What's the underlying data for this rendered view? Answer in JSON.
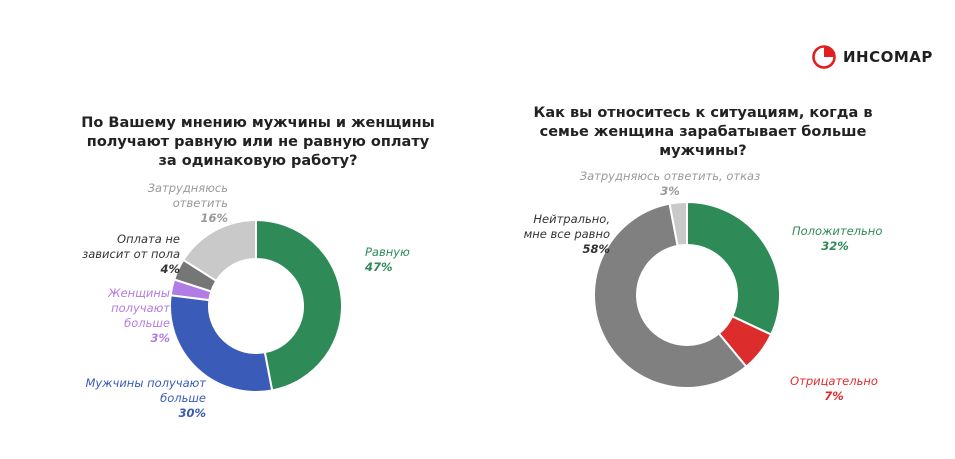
{
  "brand": {
    "name": "ИНСОМАР",
    "color": "#e02020"
  },
  "charts": [
    {
      "id": "left",
      "title": "По Вашему мнению мужчины и женщины получают равную или не равную оплату за одинаковую работу?"
    },
    {
      "id": "right",
      "title": "Как вы относитесь к ситуациям, когда в семье женщина зарабатывает больше мужчины?"
    }
  ],
  "chart_data": [
    {
      "type": "pie",
      "donut": true,
      "title": "По Вашему мнению мужчины и женщины получают равную или не равную оплату за одинаковую работу?",
      "slices": [
        {
          "label": "Равную",
          "value": 47,
          "display": "47%",
          "color": "#2e8b57"
        },
        {
          "label": "Мужчины получают больше",
          "value": 30,
          "display": "30%",
          "color": "#3a5bb8"
        },
        {
          "label": "Женщины получают больше",
          "value": 3,
          "display": "3%",
          "color": "#b27ce6"
        },
        {
          "label": "Оплата не зависит от пола",
          "value": 4,
          "display": "4%",
          "color": "#767676"
        },
        {
          "label": "Затрудняюсь ответить",
          "value": 16,
          "display": "16%",
          "color": "#c9c9c9"
        }
      ]
    },
    {
      "type": "pie",
      "donut": true,
      "title": "Как вы относитесь к ситуациям, когда в семье женщина зарабатывает больше мужчины?",
      "slices": [
        {
          "label": "Положительно",
          "value": 32,
          "display": "32%",
          "color": "#2e8b57"
        },
        {
          "label": "Отрицательно",
          "value": 7,
          "display": "7%",
          "color": "#dd2c2c"
        },
        {
          "label": "Нейтрально, мне все равно",
          "value": 58,
          "display": "58%",
          "color": "#808080"
        },
        {
          "label": "Затрудняюсь ответить, отказ",
          "value": 3,
          "display": "3%",
          "color": "#c9c9c9"
        }
      ]
    }
  ],
  "labels": {
    "left": [
      {
        "lines": [
          "Равную"
        ],
        "value": "47%"
      },
      {
        "lines": [
          "Мужчины получают",
          "больше"
        ],
        "value": "30%"
      },
      {
        "lines": [
          "Женщины",
          "получают",
          "больше"
        ],
        "value": "3%"
      },
      {
        "lines": [
          "Оплата не",
          "зависит от пола"
        ],
        "value": "4%"
      },
      {
        "lines": [
          "Затрудняюсь",
          "ответить"
        ],
        "value": "16%"
      }
    ],
    "right": [
      {
        "lines": [
          "Положительно"
        ],
        "value": "32%"
      },
      {
        "lines": [
          "Отрицательно"
        ],
        "value": "7%"
      },
      {
        "lines": [
          "Нейтрально,",
          "мне все равно"
        ],
        "value": "58%"
      },
      {
        "lines": [
          "Затрудняюсь ответить, отказ"
        ],
        "value": "3%"
      }
    ]
  }
}
